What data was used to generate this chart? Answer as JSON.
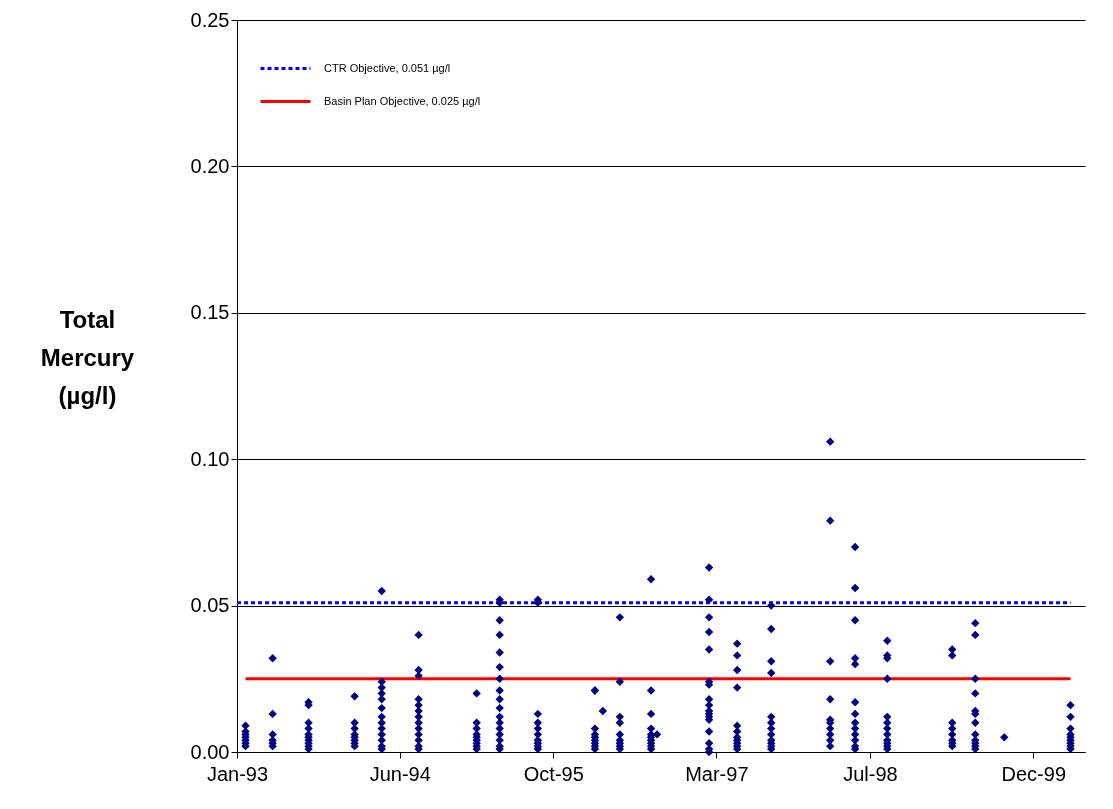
{
  "chart_data": {
    "type": "scatter",
    "ylabel": "Total Mercury (µg/l)",
    "xlim": [
      "1993-01-01",
      "2000-05-13"
    ],
    "xticks": [
      {
        "value": "1993-01-01",
        "label": "Jan-93"
      },
      {
        "value": "1994-06-01",
        "label": "Jun-94"
      },
      {
        "value": "1995-10-01",
        "label": "Oct-95"
      },
      {
        "value": "1997-03-01",
        "label": "Mar-97"
      },
      {
        "value": "1998-07-01",
        "label": "Jul-98"
      },
      {
        "value": "1999-12-01",
        "label": "Dec-99"
      }
    ],
    "ylim": [
      0,
      0.25
    ],
    "yticks": [
      {
        "value": 0,
        "label": "0.00"
      },
      {
        "value": 0.05,
        "label": "0.05"
      },
      {
        "value": 0.1,
        "label": "0.10"
      },
      {
        "value": 0.15,
        "label": "0.15"
      },
      {
        "value": 0.2,
        "label": "0.20"
      },
      {
        "value": 0.25,
        "label": "0.25"
      }
    ],
    "grid": "y",
    "legend": "top left",
    "series": [
      {
        "color": "#000080",
        "marker": "diamond",
        "x": [
          "1993-01-28",
          "1993-01-28",
          "1993-01-28",
          "1993-01-28",
          "1993-01-28",
          "1993-01-28",
          "1993-01-28",
          "1993-04-24",
          "1993-04-24",
          "1993-04-24",
          "1993-04-24",
          "1993-04-24",
          "1993-04-24",
          "1993-08-16",
          "1993-08-16",
          "1993-08-16",
          "1993-08-16",
          "1993-08-16",
          "1993-08-16",
          "1993-08-16",
          "1993-08-16",
          "1993-08-16",
          "1993-08-16",
          "1994-01-09",
          "1994-01-09",
          "1994-01-09",
          "1994-01-09",
          "1994-01-09",
          "1994-01-09",
          "1994-01-09",
          "1994-01-09",
          "1994-04-05",
          "1994-04-05",
          "1994-04-05",
          "1994-04-05",
          "1994-04-05",
          "1994-04-05",
          "1994-04-05",
          "1994-04-05",
          "1994-04-05",
          "1994-04-05",
          "1994-04-05",
          "1994-04-05",
          "1994-04-05",
          "1994-07-31",
          "1994-07-31",
          "1994-07-31",
          "1994-07-31",
          "1994-07-31",
          "1994-07-31",
          "1994-07-31",
          "1994-07-31",
          "1994-07-31",
          "1994-07-31",
          "1994-07-31",
          "1994-07-31",
          "1994-07-31",
          "1995-01-31",
          "1995-01-31",
          "1995-01-31",
          "1995-01-31",
          "1995-01-31",
          "1995-01-31",
          "1995-01-31",
          "1995-01-31",
          "1995-01-31",
          "1995-04-14",
          "1995-04-14",
          "1995-04-14",
          "1995-04-14",
          "1995-04-14",
          "1995-04-14",
          "1995-04-14",
          "1995-04-14",
          "1995-04-14",
          "1995-04-14",
          "1995-04-14",
          "1995-04-14",
          "1995-04-14",
          "1995-04-14",
          "1995-04-14",
          "1995-04-14",
          "1995-04-14",
          "1995-08-13",
          "1995-08-13",
          "1995-08-13",
          "1995-08-13",
          "1995-08-13",
          "1995-08-13",
          "1995-08-13",
          "1995-08-13",
          "1995-08-13",
          "1995-08-13",
          "1996-02-10",
          "1996-02-10",
          "1996-02-10",
          "1996-02-10",
          "1996-02-10",
          "1996-02-10",
          "1996-02-10",
          "1996-02-10",
          "1996-02-10",
          "1996-03-06",
          "1996-04-29",
          "1996-04-29",
          "1996-04-29",
          "1996-04-29",
          "1996-04-29",
          "1996-04-29",
          "1996-04-29",
          "1996-04-29",
          "1996-04-29",
          "1996-08-06",
          "1996-08-06",
          "1996-08-06",
          "1996-08-06",
          "1996-08-06",
          "1996-08-06",
          "1996-08-06",
          "1996-08-06",
          "1996-08-06",
          "1996-08-06",
          "1996-08-25",
          "1997-02-06",
          "1997-02-06",
          "1997-02-06",
          "1997-02-06",
          "1997-02-06",
          "1997-02-06",
          "1997-02-06",
          "1997-02-06",
          "1997-02-06",
          "1997-02-06",
          "1997-02-06",
          "1997-02-06",
          "1997-02-06",
          "1997-02-06",
          "1997-02-06",
          "1997-02-06",
          "1997-02-06",
          "1997-05-06",
          "1997-05-06",
          "1997-05-06",
          "1997-05-06",
          "1997-05-06",
          "1997-05-06",
          "1997-05-06",
          "1997-05-06",
          "1997-05-06",
          "1997-05-06",
          "1997-05-06",
          "1997-08-22",
          "1997-08-22",
          "1997-08-22",
          "1997-08-22",
          "1997-08-22",
          "1997-08-22",
          "1997-08-22",
          "1997-08-22",
          "1997-08-22",
          "1997-08-22",
          "1997-08-22",
          "1997-08-22",
          "1998-02-25",
          "1998-02-25",
          "1998-02-25",
          "1998-02-25",
          "1998-02-25",
          "1998-02-25",
          "1998-02-25",
          "1998-02-25",
          "1998-02-25",
          "1998-02-25",
          "1998-05-15",
          "1998-05-15",
          "1998-05-15",
          "1998-05-15",
          "1998-05-15",
          "1998-05-15",
          "1998-05-15",
          "1998-05-15",
          "1998-05-15",
          "1998-05-15",
          "1998-05-15",
          "1998-05-15",
          "1998-05-15",
          "1998-08-25",
          "1998-08-25",
          "1998-08-25",
          "1998-08-25",
          "1998-08-25",
          "1998-08-25",
          "1998-08-25",
          "1998-08-25",
          "1998-08-25",
          "1998-08-25",
          "1998-08-25",
          "1998-08-25",
          "1999-03-19",
          "1999-03-19",
          "1999-03-19",
          "1999-03-19",
          "1999-03-19",
          "1999-03-19",
          "1999-03-19",
          "1999-03-19",
          "1999-05-31",
          "1999-05-31",
          "1999-05-31",
          "1999-05-31",
          "1999-05-31",
          "1999-05-31",
          "1999-05-31",
          "1999-05-31",
          "1999-05-31",
          "1999-05-31",
          "1999-05-31",
          "1999-05-31",
          "1999-08-31",
          "2000-03-28",
          "2000-03-28",
          "2000-03-28",
          "2000-03-28",
          "2000-03-28",
          "2000-03-28",
          "2000-03-28",
          "2000-03-28",
          "2000-03-28"
        ],
        "values": [
          0.002,
          0.003,
          0.004,
          0.005,
          0.006,
          0.007,
          0.009,
          0.002,
          0.003,
          0.004,
          0.006,
          0.013,
          0.032,
          0.001,
          0.002,
          0.003,
          0.004,
          0.005,
          0.006,
          0.008,
          0.01,
          0.016,
          0.017,
          0.002,
          0.003,
          0.004,
          0.005,
          0.006,
          0.008,
          0.01,
          0.019,
          0.001,
          0.002,
          0.004,
          0.006,
          0.008,
          0.01,
          0.012,
          0.015,
          0.018,
          0.02,
          0.022,
          0.024,
          0.055,
          0.001,
          0.002,
          0.004,
          0.006,
          0.008,
          0.01,
          0.012,
          0.014,
          0.016,
          0.018,
          0.026,
          0.028,
          0.04,
          0.001,
          0.002,
          0.003,
          0.004,
          0.005,
          0.006,
          0.008,
          0.01,
          0.02,
          0.001,
          0.002,
          0.004,
          0.006,
          0.008,
          0.01,
          0.012,
          0.015,
          0.018,
          0.021,
          0.025,
          0.029,
          0.034,
          0.04,
          0.045,
          0.051,
          0.052,
          0.001,
          0.002,
          0.003,
          0.004,
          0.006,
          0.008,
          0.01,
          0.013,
          0.051,
          0.052,
          0.001,
          0.002,
          0.003,
          0.004,
          0.005,
          0.006,
          0.008,
          0.021,
          0.021,
          0.014,
          0.001,
          0.002,
          0.003,
          0.004,
          0.006,
          0.01,
          0.012,
          0.024,
          0.046,
          0.001,
          0.002,
          0.003,
          0.004,
          0.005,
          0.006,
          0.008,
          0.013,
          0.021,
          0.059,
          0.006,
          0.0,
          0.001,
          0.003,
          0.007,
          0.011,
          0.012,
          0.013,
          0.014,
          0.016,
          0.018,
          0.023,
          0.024,
          0.035,
          0.041,
          0.046,
          0.052,
          0.063,
          0.001,
          0.002,
          0.003,
          0.004,
          0.005,
          0.007,
          0.009,
          0.022,
          0.028,
          0.033,
          0.037,
          0.001,
          0.002,
          0.003,
          0.004,
          0.006,
          0.008,
          0.01,
          0.012,
          0.027,
          0.031,
          0.042,
          0.05,
          0.002,
          0.004,
          0.006,
          0.008,
          0.01,
          0.011,
          0.018,
          0.031,
          0.079,
          0.106,
          0.001,
          0.002,
          0.004,
          0.006,
          0.008,
          0.01,
          0.013,
          0.017,
          0.03,
          0.032,
          0.045,
          0.056,
          0.07,
          0.001,
          0.002,
          0.003,
          0.004,
          0.006,
          0.008,
          0.01,
          0.012,
          0.025,
          0.032,
          0.033,
          0.038,
          0.002,
          0.003,
          0.004,
          0.006,
          0.008,
          0.01,
          0.033,
          0.035,
          0.001,
          0.002,
          0.003,
          0.004,
          0.006,
          0.01,
          0.013,
          0.014,
          0.02,
          0.025,
          0.04,
          0.044,
          0.005,
          0.001,
          0.002,
          0.003,
          0.004,
          0.005,
          0.006,
          0.008,
          0.012,
          0.016
        ]
      },
      {
        "type": "line",
        "name": "CTR Objective, 0.051 µg/l",
        "color": "#0000ff",
        "line_style": "dotted",
        "x": [
          "1993-01-01",
          "2000-03-28"
        ],
        "values": [
          0.051,
          0.051
        ]
      },
      {
        "type": "line",
        "name": "Basin Plan Objective, 0.025 µg/l",
        "color": "#ff0000",
        "line_style": "solid",
        "x": [
          "1993-01-28",
          "2000-03-28"
        ],
        "values": [
          0.025,
          0.025
        ]
      }
    ]
  }
}
